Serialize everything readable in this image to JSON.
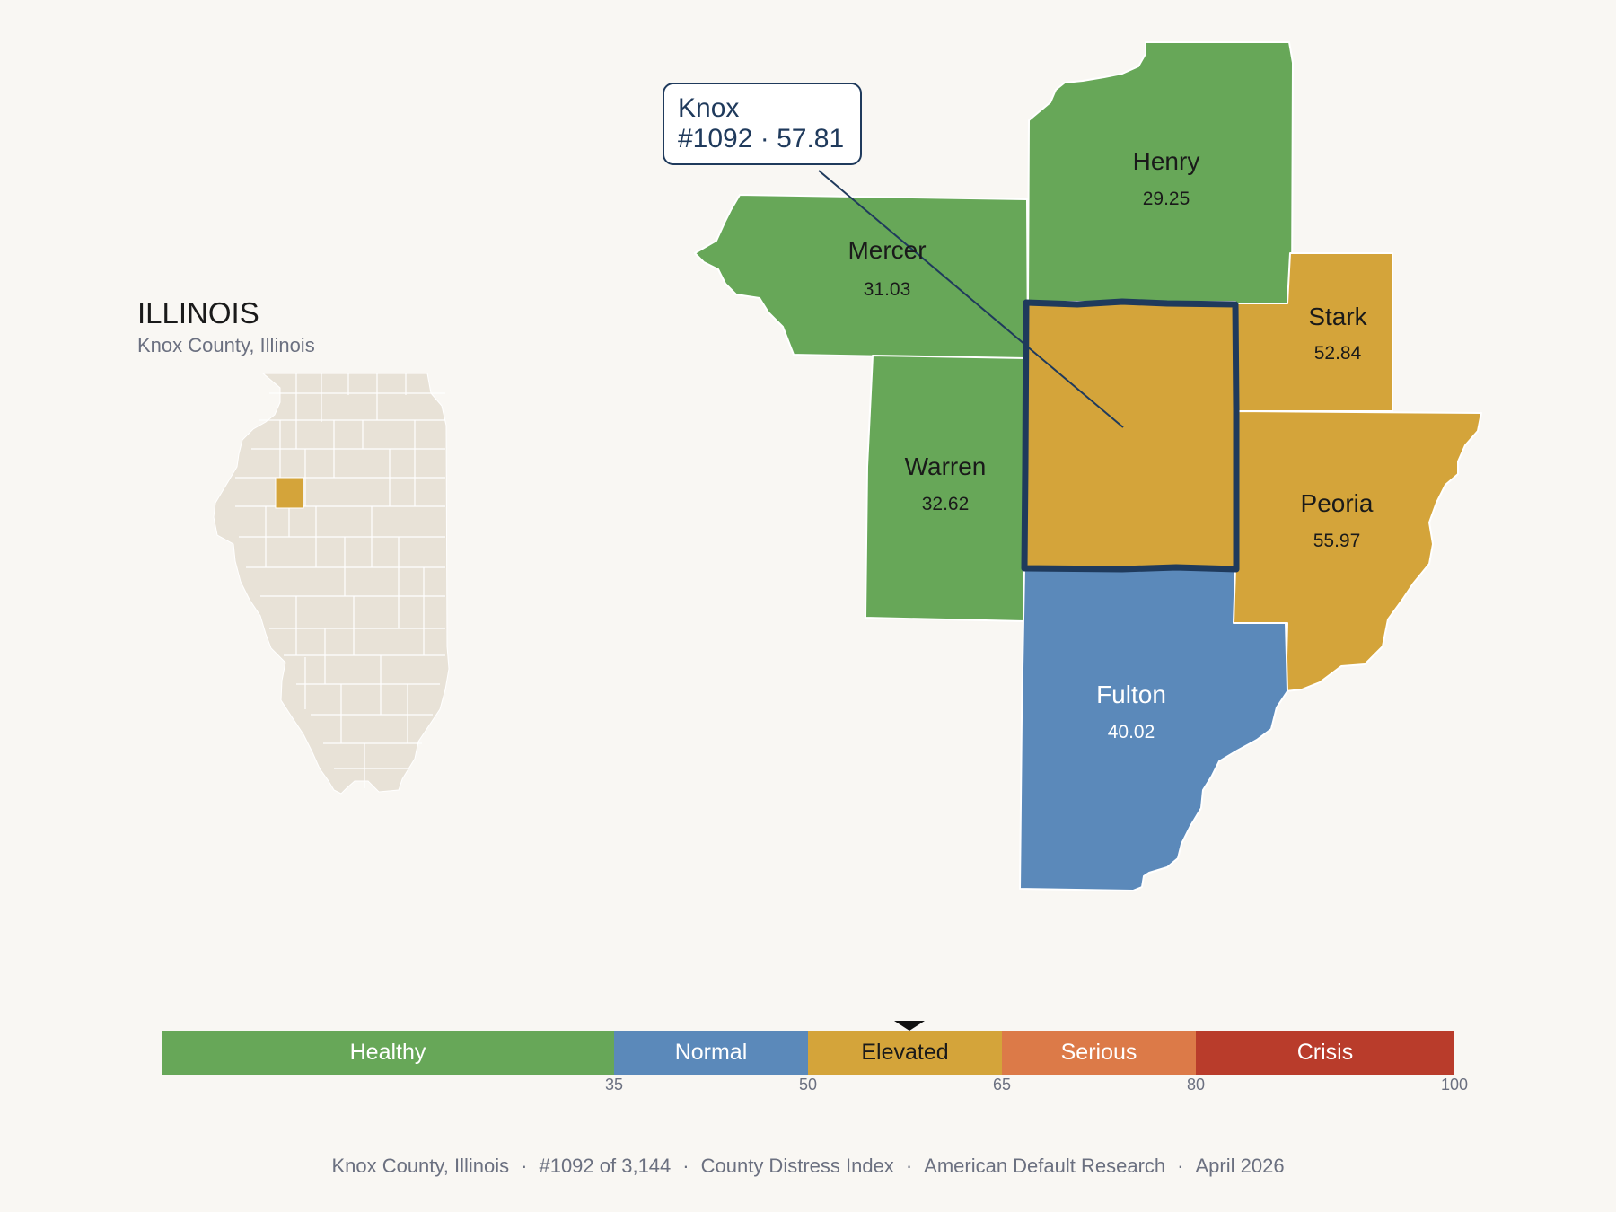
{
  "state": {
    "title": "ILLINOIS",
    "subtitle": "Knox County, Illinois"
  },
  "tooltip": {
    "name": "Knox",
    "detail": "#1092 · 57.81"
  },
  "counties": [
    {
      "name": "Mercer",
      "value": "31.03",
      "category": "Healthy"
    },
    {
      "name": "Henry",
      "value": "29.25",
      "category": "Healthy"
    },
    {
      "name": "Stark",
      "value": "52.84",
      "category": "Elevated"
    },
    {
      "name": "Warren",
      "value": "32.62",
      "category": "Healthy"
    },
    {
      "name": "Peoria",
      "value": "55.97",
      "category": "Elevated"
    },
    {
      "name": "Fulton",
      "value": "40.02",
      "category": "Normal"
    },
    {
      "name": "Knox",
      "value": "57.81",
      "category": "Elevated",
      "selected": true
    }
  ],
  "legend": {
    "segments": [
      {
        "label": "Healthy",
        "from": 0,
        "to": 35,
        "color": "#67a758"
      },
      {
        "label": "Normal",
        "from": 35,
        "to": 50,
        "color": "#5b89ba"
      },
      {
        "label": "Elevated",
        "from": 50,
        "to": 65,
        "color": "#d4a43a"
      },
      {
        "label": "Serious",
        "from": 65,
        "to": 80,
        "color": "#dc7a48"
      },
      {
        "label": "Crisis",
        "from": 80,
        "to": 100,
        "color": "#b93c2b"
      }
    ],
    "ticks": [
      "35",
      "50",
      "65",
      "80",
      "100"
    ],
    "marker_value": 57.81
  },
  "footer": {
    "county": "Knox County, Illinois",
    "rank": "#1092 of 3,144",
    "index": "County Distress Index",
    "source": "American Default Research",
    "date": "April 2026"
  },
  "colors": {
    "background": "#f9f7f3",
    "state_fill": "#e8e2d7",
    "healthy": "#67a758",
    "normal": "#5b89ba",
    "elevated": "#d4a43a",
    "highlight_border": "#1f3a5c"
  }
}
